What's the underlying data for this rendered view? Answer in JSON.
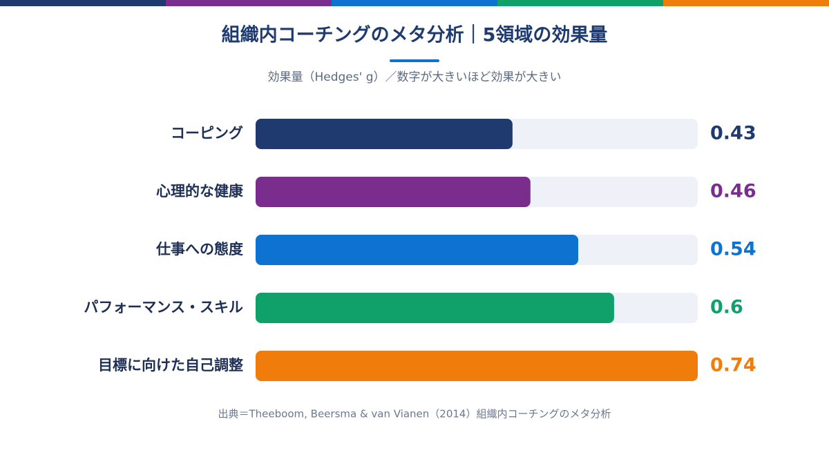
{
  "chart_data": {
    "type": "bar",
    "orientation": "horizontal",
    "title": "組織内コーチングのメタ分析｜5領域の効果量",
    "subtitle": "効果量（Hedges' g）／数字が大きいほど効果が大きい",
    "categories": [
      "コーピング",
      "心理的な健康",
      "仕事への態度",
      "パフォーマンス・スキル",
      "目標に向けた自己調整"
    ],
    "values": [
      0.43,
      0.46,
      0.54,
      0.6,
      0.74
    ],
    "colors": [
      "#1e3a6e",
      "#7b2d8e",
      "#0e72d0",
      "#10a06a",
      "#f07c0c"
    ],
    "xlim": [
      0,
      0.74
    ],
    "source": "出典＝Theeboom, Beersma & van Vianen（2014）組織内コーチングのメタ分析"
  }
}
